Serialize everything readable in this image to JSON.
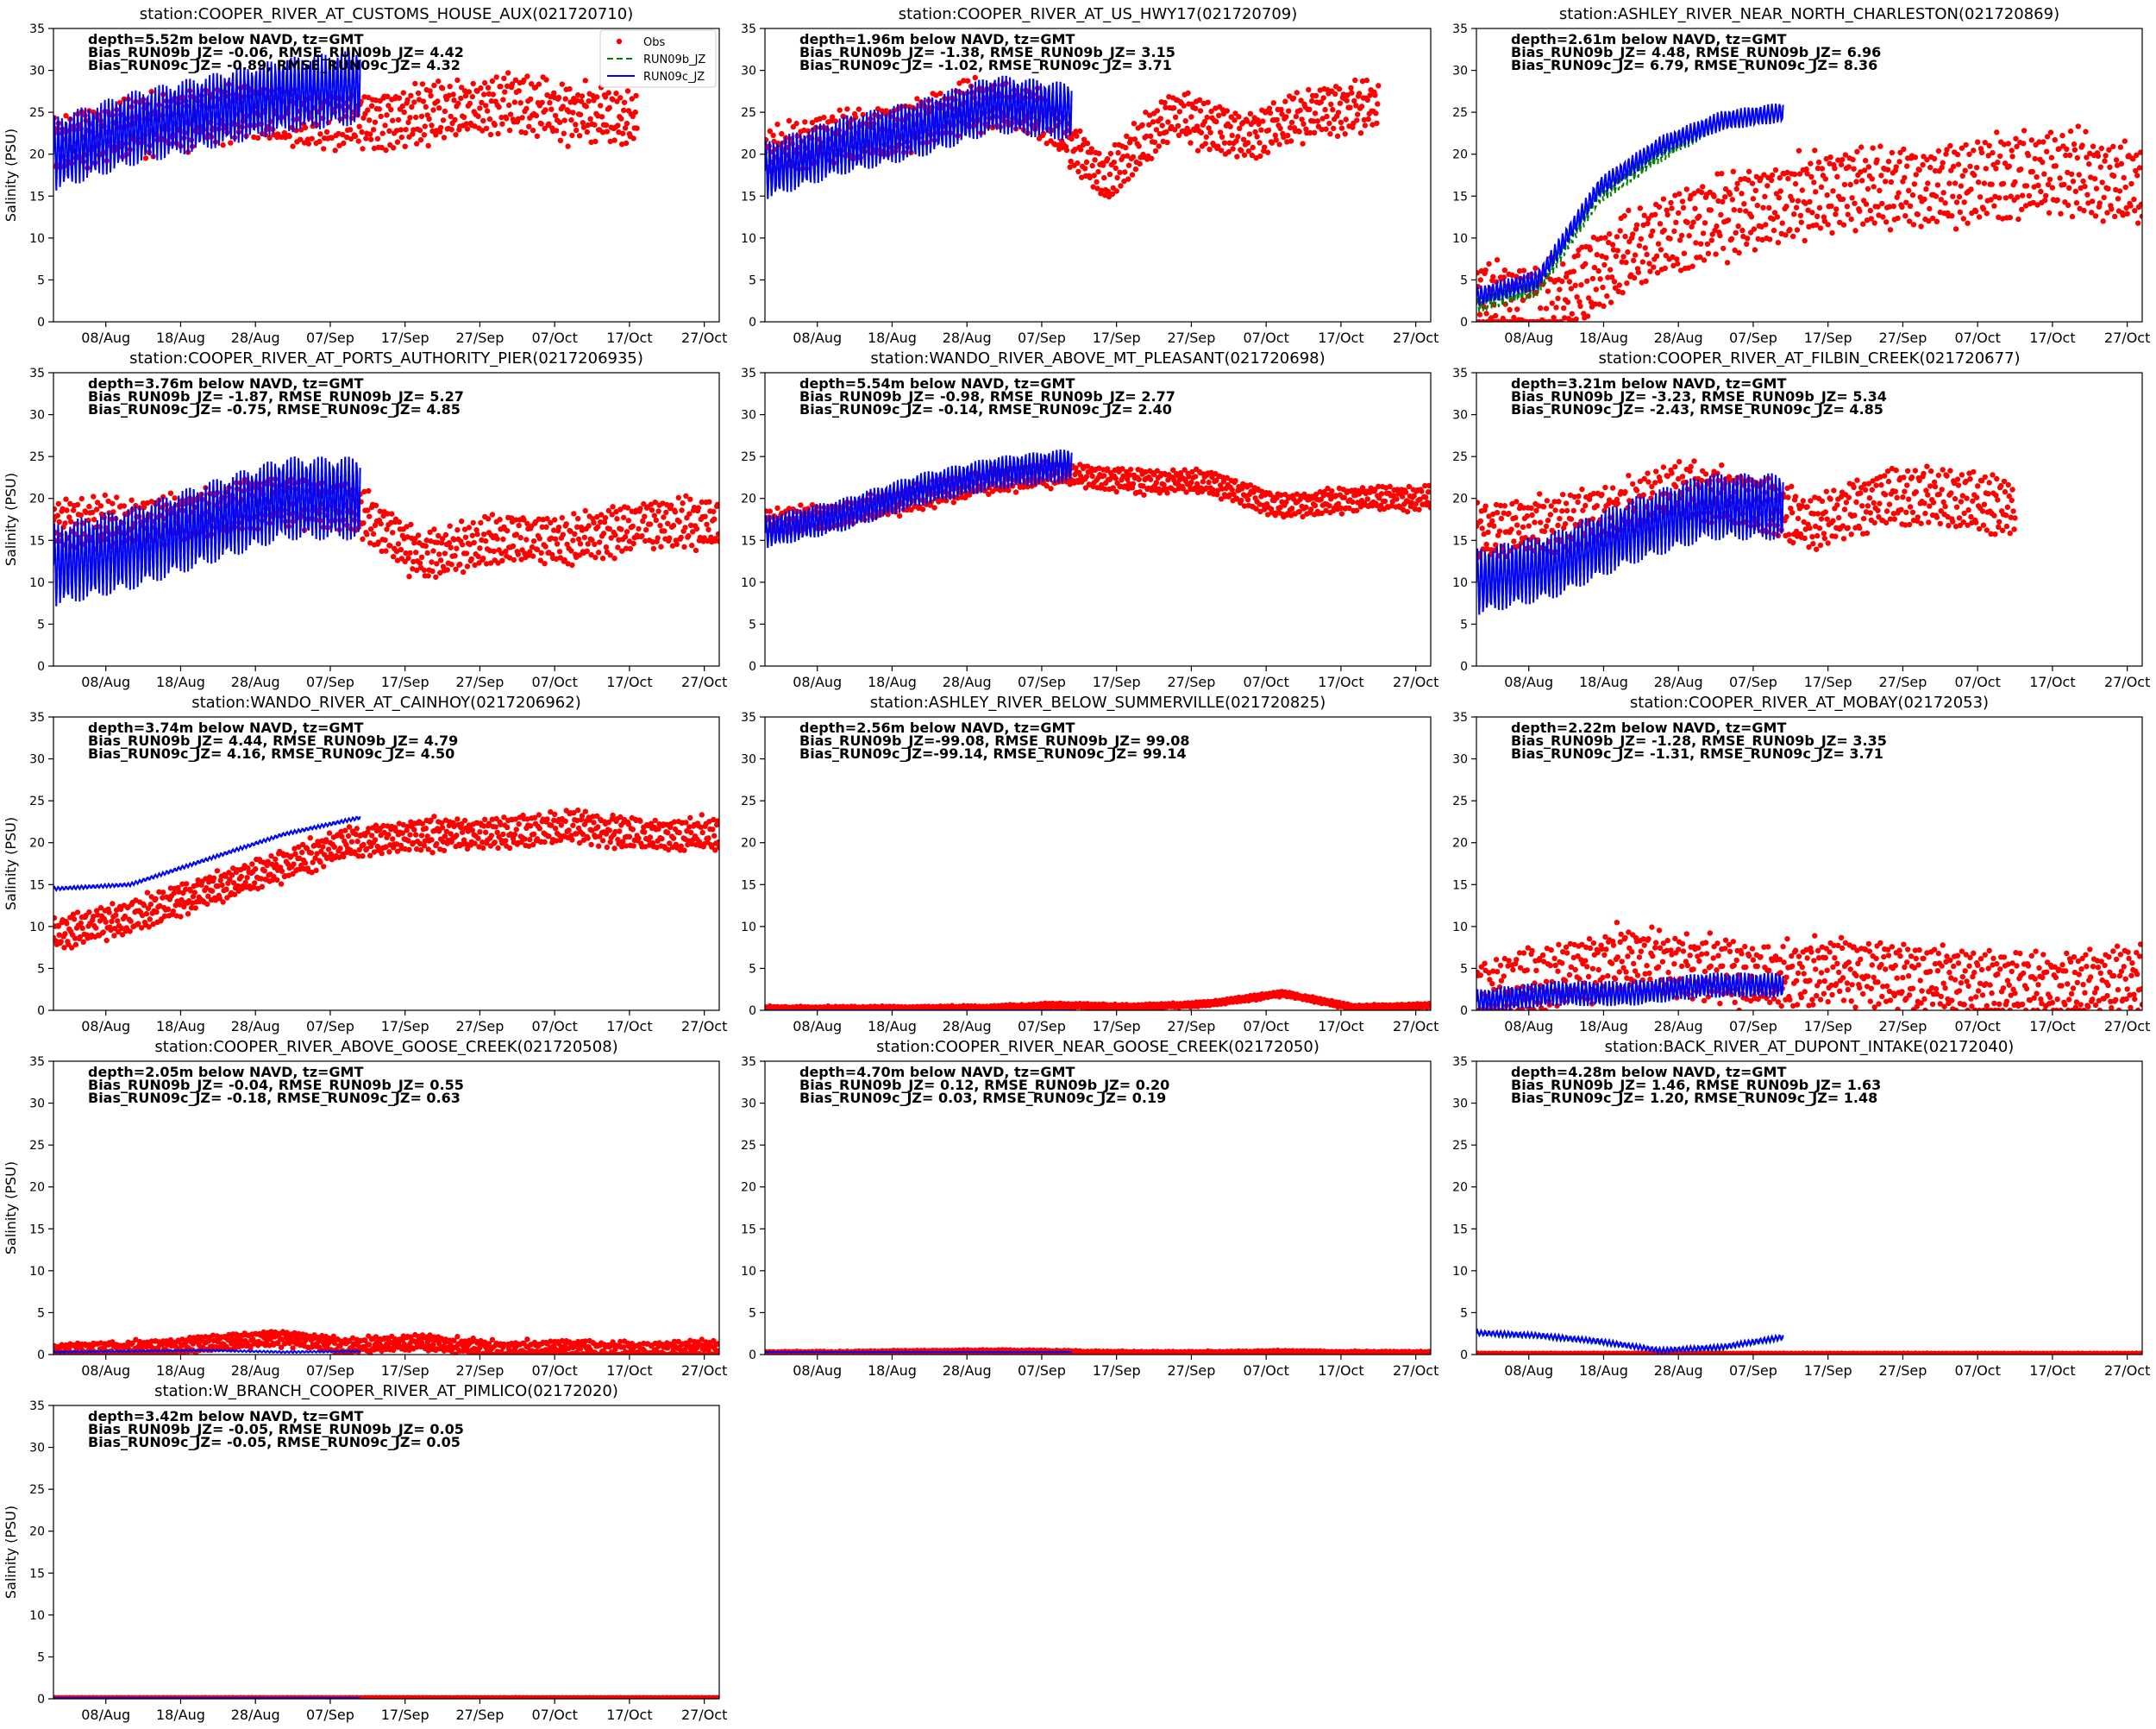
{
  "figure": {
    "ylabel": "Salinity (PSU)",
    "legend": [
      "Obs",
      "RUN09b_JZ",
      "RUN09c_JZ"
    ],
    "colors": {
      "obs": "#ff0000",
      "run09b": "#008000",
      "run09c": "#0000ff"
    }
  },
  "chart_data": [
    {
      "type": "line",
      "title": "station:COOPER_RIVER_AT_CUSTOMS_HOUSE_AUX(021720710)",
      "stats": [
        "depth=5.52m below NAVD, tz=GMT",
        "Bias_RUN09b_JZ= -0.06, RMSE_RUN09b_JZ=  4.42",
        "Bias_RUN09c_JZ= -0.89, RMSE_RUN09c_JZ=  4.32"
      ],
      "ylabel": "Salinity (PSU)",
      "xticks": [
        "08/Aug",
        "18/Aug",
        "28/Aug",
        "07/Sep",
        "17/Sep",
        "27/Sep",
        "07/Oct",
        "17/Oct",
        "27/Oct"
      ],
      "ylim": [
        0,
        35
      ],
      "yticks": [
        0,
        5,
        10,
        15,
        20,
        25,
        30,
        35
      ],
      "legend": true,
      "obs": {
        "start": 0,
        "end": 78,
        "mean": [
          21,
          23,
          24,
          25,
          24,
          24,
          25,
          26,
          25,
          24
        ],
        "amp": 3.5
      },
      "run09b": {
        "start": 0,
        "end": 41,
        "mean": [
          20,
          23,
          25,
          27,
          28
        ],
        "amp": 4
      },
      "run09c": {
        "start": 0,
        "end": 41,
        "mean": [
          20,
          23,
          25,
          27,
          28
        ],
        "amp": 4.5
      }
    },
    {
      "type": "line",
      "title": "station:COOPER_RIVER_AT_US_HWY17(021720709)",
      "stats": [
        "depth=1.96m below NAVD, tz=GMT",
        "Bias_RUN09b_JZ= -1.38, RMSE_RUN09b_JZ=  3.15",
        "Bias_RUN09c_JZ= -1.02, RMSE_RUN09c_JZ=  3.71"
      ],
      "ylabel": "",
      "xticks": [
        "08/Aug",
        "18/Aug",
        "28/Aug",
        "07/Sep",
        "17/Sep",
        "27/Sep",
        "07/Oct",
        "17/Oct",
        "27/Oct"
      ],
      "ylim": [
        0,
        35
      ],
      "yticks": [
        0,
        5,
        10,
        15,
        20,
        25,
        30,
        35
      ],
      "legend": false,
      "obs": {
        "start": 0,
        "end": 82,
        "mean": [
          20,
          22,
          23,
          26,
          25,
          17,
          25,
          22,
          25,
          26
        ],
        "amp": 3
      },
      "run09b": {
        "start": 0,
        "end": 41,
        "mean": [
          18,
          21,
          23,
          26,
          25
        ],
        "amp": 3.5
      },
      "run09c": {
        "start": 0,
        "end": 41,
        "mean": [
          18,
          21,
          23,
          26,
          25
        ],
        "amp": 3.5
      }
    },
    {
      "type": "line",
      "title": "station:ASHLEY_RIVER_NEAR_NORTH_CHARLESTON(021720869)",
      "stats": [
        "depth=2.61m below NAVD, tz=GMT",
        "Bias_RUN09b_JZ=  4.48, RMSE_RUN09b_JZ=  6.96",
        "Bias_RUN09c_JZ=  6.79, RMSE_RUN09c_JZ=  8.36"
      ],
      "ylabel": "",
      "xticks": [
        "08/Aug",
        "18/Aug",
        "28/Aug",
        "07/Sep",
        "17/Sep",
        "27/Sep",
        "07/Oct",
        "17/Oct",
        "27/Oct"
      ],
      "ylim": [
        0,
        35
      ],
      "yticks": [
        0,
        5,
        10,
        15,
        20,
        25,
        30,
        35
      ],
      "legend": false,
      "obs": {
        "start": 0,
        "end": 89,
        "mean": [
          3,
          2,
          8,
          12,
          14,
          16,
          16,
          17,
          18,
          16
        ],
        "amp": 5
      },
      "run09b": {
        "start": 0,
        "end": 41,
        "mean": [
          2,
          4,
          15,
          20,
          24,
          25
        ],
        "amp": 1
      },
      "run09c": {
        "start": 0,
        "end": 41,
        "mean": [
          3,
          5,
          16,
          21,
          24,
          25
        ],
        "amp": 1.2
      }
    },
    {
      "type": "line",
      "title": "station:COOPER_RIVER_AT_PORTS_AUTHORITY_PIER(0217206935)",
      "stats": [
        "depth=3.76m below NAVD, tz=GMT",
        "Bias_RUN09b_JZ= -1.87, RMSE_RUN09b_JZ=  5.27",
        "Bias_RUN09c_JZ= -0.75, RMSE_RUN09c_JZ=  4.85"
      ],
      "ylabel": "Salinity (PSU)",
      "xticks": [
        "08/Aug",
        "18/Aug",
        "28/Aug",
        "07/Sep",
        "17/Sep",
        "27/Sep",
        "07/Oct",
        "17/Oct",
        "27/Oct"
      ],
      "ylim": [
        0,
        35
      ],
      "yticks": [
        0,
        5,
        10,
        15,
        20,
        25,
        30,
        35
      ],
      "legend": false,
      "obs": {
        "start": 0,
        "end": 89,
        "mean": [
          17,
          17,
          18,
          20,
          19,
          13,
          15,
          15,
          17,
          17
        ],
        "amp": 3
      },
      "run09b": {
        "start": 0,
        "end": 41,
        "mean": [
          12,
          14,
          17,
          20,
          20
        ],
        "amp": 5
      },
      "run09c": {
        "start": 0,
        "end": 41,
        "mean": [
          12,
          14,
          17,
          20,
          20
        ],
        "amp": 5
      }
    },
    {
      "type": "line",
      "title": "station:WANDO_RIVER_ABOVE_MT_PLEASANT(021720698)",
      "stats": [
        "depth=5.54m below NAVD, tz=GMT",
        "Bias_RUN09b_JZ= -0.98, RMSE_RUN09b_JZ=  2.77",
        "Bias_RUN09c_JZ= -0.14, RMSE_RUN09c_JZ=  2.40"
      ],
      "ylabel": "",
      "xticks": [
        "08/Aug",
        "18/Aug",
        "28/Aug",
        "07/Sep",
        "17/Sep",
        "27/Sep",
        "07/Oct",
        "17/Oct",
        "27/Oct"
      ],
      "ylim": [
        0,
        35
      ],
      "yticks": [
        0,
        5,
        10,
        15,
        20,
        25,
        30,
        35
      ],
      "legend": false,
      "obs": {
        "start": 0,
        "end": 89,
        "mean": [
          17,
          18,
          20,
          22,
          23,
          22,
          22,
          19,
          20,
          20
        ],
        "amp": 1.5
      },
      "run09b": {
        "start": 0,
        "end": 41,
        "mean": [
          16,
          18,
          21,
          23,
          24
        ],
        "amp": 2
      },
      "run09c": {
        "start": 0,
        "end": 41,
        "mean": [
          16,
          18,
          21,
          23,
          24
        ],
        "amp": 2
      }
    },
    {
      "type": "line",
      "title": "station:COOPER_RIVER_AT_FILBIN_CREEK(021720677)",
      "stats": [
        "depth=3.21m below NAVD, tz=GMT",
        "Bias_RUN09b_JZ= -3.23, RMSE_RUN09b_JZ=  5.34",
        "Bias_RUN09c_JZ= -2.43, RMSE_RUN09c_JZ=  4.85"
      ],
      "ylabel": "",
      "xticks": [
        "08/Aug",
        "18/Aug",
        "28/Aug",
        "07/Sep",
        "17/Sep",
        "27/Sep",
        "07/Oct",
        "17/Oct",
        "27/Oct"
      ],
      "ylim": [
        0,
        35
      ],
      "yticks": [
        0,
        5,
        10,
        15,
        20,
        25,
        30,
        35
      ],
      "legend": false,
      "obs": {
        "start": 0,
        "end": 72,
        "mean": [
          16,
          17,
          18,
          21,
          20,
          17,
          20,
          20,
          19
        ],
        "amp": 3.5
      },
      "run09b": {
        "start": 0,
        "end": 41,
        "mean": [
          10,
          12,
          16,
          19,
          19
        ],
        "amp": 4
      },
      "run09c": {
        "start": 0,
        "end": 41,
        "mean": [
          10,
          12,
          16,
          19,
          19
        ],
        "amp": 4
      }
    },
    {
      "type": "line",
      "title": "station:WANDO_RIVER_AT_CAINHOY(0217206962)",
      "stats": [
        "depth=3.74m below NAVD, tz=GMT",
        "Bias_RUN09b_JZ=  4.44, RMSE_RUN09b_JZ=  4.79",
        "Bias_RUN09c_JZ=  4.16, RMSE_RUN09c_JZ=  4.50"
      ],
      "ylabel": "Salinity (PSU)",
      "xticks": [
        "08/Aug",
        "18/Aug",
        "28/Aug",
        "07/Sep",
        "17/Sep",
        "27/Sep",
        "07/Oct",
        "17/Oct",
        "27/Oct"
      ],
      "ylim": [
        0,
        35
      ],
      "yticks": [
        0,
        5,
        10,
        15,
        20,
        25,
        30,
        35
      ],
      "legend": false,
      "obs": {
        "start": 0,
        "end": 89,
        "mean": [
          9,
          11,
          14,
          17,
          20,
          21,
          21,
          22,
          21,
          21
        ],
        "amp": 2
      },
      "run09b": {
        "start": 0,
        "end": 41,
        "mean": [
          14.5,
          15,
          18,
          21,
          23
        ],
        "amp": 0.2
      },
      "run09c": {
        "start": 0,
        "end": 41,
        "mean": [
          14.5,
          15,
          18,
          21,
          23
        ],
        "amp": 0.2
      }
    },
    {
      "type": "line",
      "title": "station:ASHLEY_RIVER_BELOW_SUMMERVILLE(021720825)",
      "stats": [
        "depth=2.56m below NAVD, tz=GMT",
        "Bias_RUN09b_JZ=-99.08, RMSE_RUN09b_JZ= 99.08",
        "Bias_RUN09c_JZ=-99.14, RMSE_RUN09c_JZ= 99.14"
      ],
      "ylabel": "",
      "xticks": [
        "08/Aug",
        "18/Aug",
        "28/Aug",
        "07/Sep",
        "17/Sep",
        "27/Sep",
        "07/Oct",
        "17/Oct",
        "27/Oct"
      ],
      "ylim": [
        0,
        35
      ],
      "yticks": [
        0,
        5,
        10,
        15,
        20,
        25,
        30,
        35
      ],
      "legend": false,
      "obs": {
        "start": 0,
        "end": 89,
        "mean": [
          0.2,
          0.2,
          0.2,
          0.3,
          0.6,
          0.4,
          0.8,
          2,
          0.3,
          0.6
        ],
        "amp": 0.3
      },
      "run09b": {
        "start": 0,
        "end": 41,
        "mean": [
          0,
          0
        ],
        "amp": 0
      },
      "run09c": {
        "start": 0,
        "end": 41,
        "mean": [
          0,
          0
        ],
        "amp": 0
      }
    },
    {
      "type": "line",
      "title": "station:COOPER_RIVER_AT_MOBAY(02172053)",
      "stats": [
        "depth=2.22m below NAVD, tz=GMT",
        "Bias_RUN09b_JZ= -1.28, RMSE_RUN09b_JZ=  3.35",
        "Bias_RUN09c_JZ= -1.31, RMSE_RUN09c_JZ=  3.71"
      ],
      "ylabel": "",
      "xticks": [
        "08/Aug",
        "18/Aug",
        "28/Aug",
        "07/Sep",
        "17/Sep",
        "27/Sep",
        "07/Oct",
        "17/Oct",
        "27/Oct"
      ],
      "ylim": [
        0,
        35
      ],
      "yticks": [
        0,
        5,
        10,
        15,
        20,
        25,
        30,
        35
      ],
      "legend": false,
      "obs": {
        "start": 0,
        "end": 89,
        "mean": [
          2,
          4,
          6,
          5,
          4,
          5,
          4,
          3,
          3,
          4
        ],
        "amp": 4
      },
      "run09b": {
        "start": 0,
        "end": 41,
        "mean": [
          1,
          2,
          2,
          3,
          3
        ],
        "amp": 1.5
      },
      "run09c": {
        "start": 0,
        "end": 41,
        "mean": [
          1,
          2,
          2,
          3,
          3
        ],
        "amp": 1.5
      }
    },
    {
      "type": "line",
      "title": "station:COOPER_RIVER_ABOVE_GOOSE_CREEK(021720508)",
      "stats": [
        "depth=2.05m below NAVD, tz=GMT",
        "Bias_RUN09b_JZ= -0.04, RMSE_RUN09b_JZ=  0.55",
        "Bias_RUN09c_JZ= -0.18, RMSE_RUN09c_JZ=  0.63"
      ],
      "ylabel": "Salinity (PSU)",
      "xticks": [
        "08/Aug",
        "18/Aug",
        "28/Aug",
        "07/Sep",
        "17/Sep",
        "27/Sep",
        "07/Oct",
        "17/Oct",
        "27/Oct"
      ],
      "ylim": [
        0,
        35
      ],
      "yticks": [
        0,
        5,
        10,
        15,
        20,
        25,
        30,
        35
      ],
      "legend": false,
      "obs": {
        "start": 0,
        "end": 89,
        "mean": [
          0.4,
          0.6,
          1.2,
          2,
          1,
          1.5,
          0.6,
          0.8,
          0.5,
          0.8
        ],
        "amp": 1
      },
      "run09b": {
        "start": 0,
        "end": 41,
        "mean": [
          0.3,
          0.4,
          0.5,
          0.3,
          0.4
        ],
        "amp": 0.1
      },
      "run09c": {
        "start": 0,
        "end": 41,
        "mean": [
          0.3,
          0.4,
          0.5,
          0.3,
          0.4
        ],
        "amp": 0.1
      }
    },
    {
      "type": "line",
      "title": "station:COOPER_RIVER_NEAR_GOOSE_CREEK(02172050)",
      "stats": [
        "depth=4.70m below NAVD, tz=GMT",
        "Bias_RUN09b_JZ=  0.12, RMSE_RUN09b_JZ=  0.20",
        "Bias_RUN09c_JZ=  0.03, RMSE_RUN09c_JZ=  0.19"
      ],
      "ylabel": "",
      "xticks": [
        "08/Aug",
        "18/Aug",
        "28/Aug",
        "07/Sep",
        "17/Sep",
        "27/Sep",
        "07/Oct",
        "17/Oct",
        "27/Oct"
      ],
      "ylim": [
        0,
        35
      ],
      "yticks": [
        0,
        5,
        10,
        15,
        20,
        25,
        30,
        35
      ],
      "legend": false,
      "obs": {
        "start": 0,
        "end": 89,
        "mean": [
          0.2,
          0.2,
          0.3,
          0.4,
          0.3,
          0.2,
          0.2,
          0.3,
          0.2,
          0.2
        ],
        "amp": 0.2
      },
      "run09b": {
        "start": 0,
        "end": 41,
        "mean": [
          0.3,
          0.3,
          0.3,
          0.3,
          0.3
        ],
        "amp": 0.05
      },
      "run09c": {
        "start": 0,
        "end": 41,
        "mean": [
          0.3,
          0.3,
          0.3,
          0.3,
          0.3
        ],
        "amp": 0.05
      }
    },
    {
      "type": "line",
      "title": "station:BACK_RIVER_AT_DUPONT_INTAKE(02172040)",
      "stats": [
        "depth=4.28m below NAVD, tz=GMT",
        "Bias_RUN09b_JZ=  1.46, RMSE_RUN09b_JZ=  1.63",
        "Bias_RUN09c_JZ=  1.20, RMSE_RUN09c_JZ=  1.48"
      ],
      "ylabel": "",
      "xticks": [
        "08/Aug",
        "18/Aug",
        "28/Aug",
        "07/Sep",
        "17/Sep",
        "27/Sep",
        "07/Oct",
        "17/Oct",
        "27/Oct"
      ],
      "ylim": [
        0,
        35
      ],
      "yticks": [
        0,
        5,
        10,
        15,
        20,
        25,
        30,
        35
      ],
      "legend": false,
      "obs": {
        "start": 0,
        "end": 89,
        "mean": [
          0.1,
          0.1,
          0.1,
          0.1,
          0.1,
          0.1,
          0.1,
          0.1,
          0.1,
          0.1
        ],
        "amp": 0.05
      },
      "run09b": {
        "start": 0,
        "end": 41,
        "mean": [
          2.5,
          2.2,
          1.5,
          0.5,
          0.8,
          2
        ],
        "amp": 0.3
      },
      "run09c": {
        "start": 0,
        "end": 41,
        "mean": [
          2.6,
          2.3,
          1.6,
          0.5,
          0.9,
          2.1
        ],
        "amp": 0.3
      }
    },
    {
      "type": "line",
      "title": "station:W_BRANCH_COOPER_RIVER_AT_PIMLICO(02172020)",
      "stats": [
        "depth=3.42m below NAVD, tz=GMT",
        "Bias_RUN09b_JZ= -0.05, RMSE_RUN09b_JZ=  0.05",
        "Bias_RUN09c_JZ= -0.05, RMSE_RUN09c_JZ=  0.05"
      ],
      "ylabel": "Salinity (PSU)",
      "xticks": [
        "08/Aug",
        "18/Aug",
        "28/Aug",
        "07/Sep",
        "17/Sep",
        "27/Sep",
        "07/Oct",
        "17/Oct",
        "27/Oct"
      ],
      "ylim": [
        0,
        35
      ],
      "yticks": [
        0,
        5,
        10,
        15,
        20,
        25,
        30,
        35
      ],
      "legend": false,
      "obs": {
        "start": 0,
        "end": 89,
        "mean": [
          0.1,
          0.1,
          0.1,
          0.1,
          0.1,
          0.1,
          0.1,
          0.1,
          0.1,
          0.1
        ],
        "amp": 0.03
      },
      "run09b": {
        "start": 0,
        "end": 41,
        "mean": [
          0.1,
          0.1
        ],
        "amp": 0
      },
      "run09c": {
        "start": 0,
        "end": 41,
        "mean": [
          0.1,
          0.1
        ],
        "amp": 0
      }
    }
  ]
}
